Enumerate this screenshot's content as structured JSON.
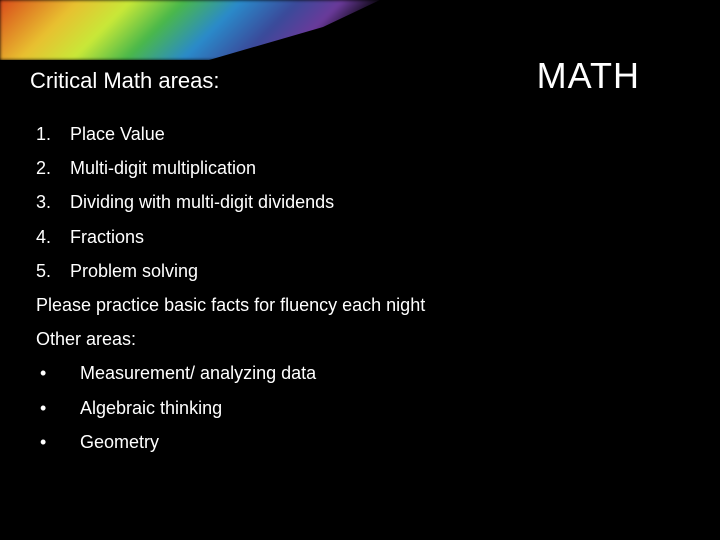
{
  "title": "MATH",
  "subtitle": "Critical Math areas:",
  "numbered_items": [
    {
      "num": "1.",
      "text": "Place Value"
    },
    {
      "num": "2.",
      "text": "Multi-digit multiplication"
    },
    {
      "num": "3.",
      "text": "Dividing with multi-digit dividends"
    },
    {
      "num": "4.",
      "text": "Fractions"
    },
    {
      "num": "5.",
      "text": "Problem solving"
    }
  ],
  "practice_line": "Please practice basic facts for fluency each night",
  "other_label": "Other areas:",
  "bullet_items": [
    "Measurement/ analyzing data",
    "Algebraic thinking",
    "Geometry"
  ],
  "colors": {
    "background": "#000000",
    "text": "#ffffff"
  },
  "fonts": {
    "title_size": 36,
    "subtitle_size": 22,
    "body_size": 18
  }
}
